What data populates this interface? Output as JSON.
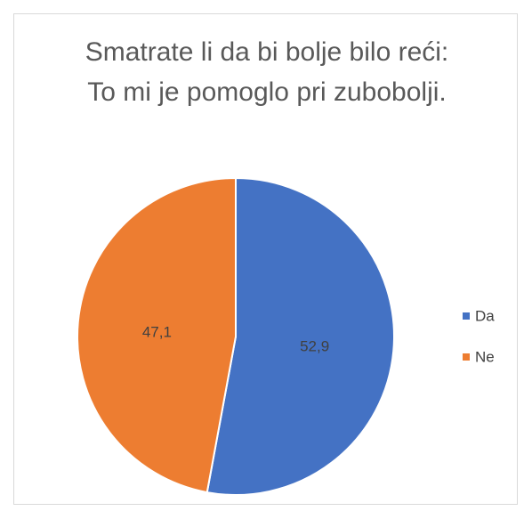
{
  "chart_data": {
    "type": "pie",
    "title": "Smatrate li da bi bolje bilo reći: To mi je pomoglo pri zubobolji.",
    "categories": [
      "Da",
      "Ne"
    ],
    "values": [
      52.9,
      47.1
    ],
    "value_labels": [
      "52,9",
      "47,1"
    ],
    "colors": [
      "#4472c4",
      "#ed7d31"
    ],
    "legend": "right"
  }
}
